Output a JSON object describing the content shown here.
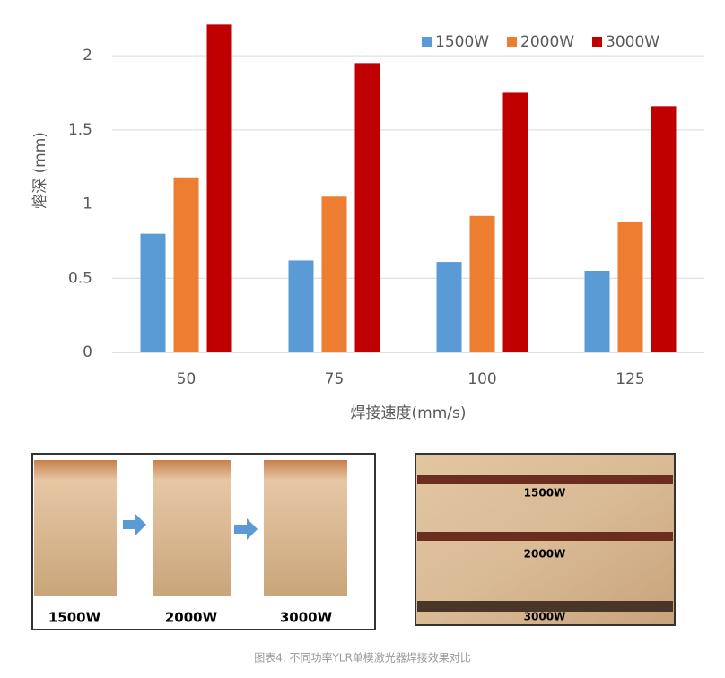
{
  "chart_data": {
    "type": "bar",
    "y_label": "熔深 (mm)",
    "x_label": "焊接速度(mm/s)",
    "categories": [
      "50",
      "75",
      "100",
      "125"
    ],
    "series": [
      {
        "name": "1500W",
        "color": "#5b9bd5",
        "values": [
          0.8,
          0.62,
          0.61,
          0.55
        ]
      },
      {
        "name": "2000W",
        "color": "#ed7d31",
        "values": [
          1.18,
          1.05,
          0.92,
          0.88
        ]
      },
      {
        "name": "3000W",
        "color": "#c00000",
        "values": [
          2.21,
          1.95,
          1.75,
          1.66
        ]
      }
    ],
    "ylim": [
      0,
      2.2
    ],
    "yticks": [
      0,
      0.5,
      1,
      1.5,
      2
    ],
    "grid": true,
    "legend": "top-right"
  },
  "images": {
    "left_labels": [
      "1500W",
      "2000W",
      "3000W"
    ],
    "right_labels": [
      "1500W",
      "2000W",
      "3000W"
    ]
  },
  "caption": "图表4. 不同功率YLR单模激光器焊接效果对比"
}
